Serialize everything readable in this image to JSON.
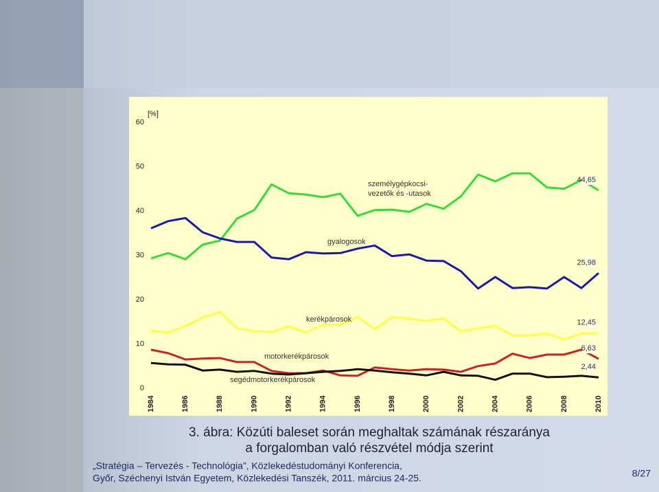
{
  "chart_data": {
    "type": "line",
    "ylabel": "[%]",
    "x": [
      1984,
      1985,
      1986,
      1987,
      1988,
      1989,
      1990,
      1991,
      1992,
      1993,
      1994,
      1995,
      1996,
      1997,
      1998,
      1999,
      2000,
      2001,
      2002,
      2003,
      2004,
      2005,
      2006,
      2007,
      2008,
      2009,
      2010
    ],
    "xlim": [
      1984,
      2010
    ],
    "xticks": [
      1984,
      1986,
      1988,
      1990,
      1992,
      1994,
      1996,
      1998,
      2000,
      2002,
      2004,
      2006,
      2008,
      2010
    ],
    "ylim": [
      0,
      60
    ],
    "yticks": [
      0,
      10,
      20,
      30,
      40,
      50,
      60
    ],
    "series": [
      {
        "name": "személygépkocsi-\nvezetők és -utasok",
        "color": "#33dd33",
        "values": [
          29.3,
          30.5,
          29.1,
          32.4,
          33.3,
          38.3,
          40.2,
          46.0,
          44.0,
          43.7,
          43.1,
          43.9,
          38.9,
          40.2,
          40.3,
          39.8,
          41.6,
          40.5,
          43.3,
          48.2,
          46.7,
          48.5,
          48.5,
          45.3,
          45.0,
          47.0,
          44.65
        ],
        "value_labels": [
          null,
          null,
          null,
          null,
          null,
          null,
          null,
          null,
          null,
          null,
          null,
          null,
          null,
          null,
          null,
          null,
          null,
          null,
          null,
          null,
          null,
          null,
          null,
          null,
          null,
          null,
          "44,65"
        ]
      },
      {
        "name": "gyalogosok",
        "color": "#1a1aaa",
        "values": [
          36.1,
          37.7,
          38.4,
          35.2,
          33.8,
          33.0,
          33.0,
          29.5,
          29.1,
          30.7,
          30.4,
          30.5,
          31.5,
          32.2,
          29.8,
          30.2,
          28.8,
          28.7,
          26.4,
          22.5,
          25.1,
          22.6,
          22.8,
          22.5,
          25.1,
          22.6,
          25.98
        ],
        "value_labels": [
          null,
          null,
          null,
          null,
          null,
          null,
          null,
          null,
          null,
          null,
          null,
          null,
          null,
          null,
          null,
          null,
          null,
          null,
          null,
          null,
          null,
          null,
          null,
          null,
          null,
          null,
          "25,98"
        ]
      },
      {
        "name": "kerékpárosok",
        "color": "#ffff44",
        "values": [
          13.0,
          12.6,
          14.1,
          16.0,
          17.2,
          13.5,
          12.9,
          12.7,
          14.0,
          12.6,
          14.3,
          14.3,
          16.1,
          13.3,
          16.0,
          15.7,
          15.2,
          15.8,
          12.9,
          13.5,
          14.1,
          11.9,
          11.9,
          12.4,
          11.0,
          12.4,
          12.45
        ],
        "value_labels": [
          null,
          null,
          null,
          null,
          null,
          null,
          null,
          null,
          null,
          null,
          null,
          null,
          null,
          null,
          null,
          null,
          null,
          null,
          null,
          null,
          null,
          null,
          null,
          null,
          null,
          null,
          "12,45"
        ]
      },
      {
        "name": "motorkerékpárosok",
        "color": "#cc2222",
        "values": [
          8.7,
          7.9,
          6.5,
          6.7,
          6.8,
          5.9,
          5.9,
          3.9,
          3.4,
          3.4,
          4.0,
          2.9,
          2.8,
          4.7,
          4.3,
          4.0,
          4.3,
          4.2,
          3.7,
          5.0,
          5.6,
          7.8,
          6.8,
          7.6,
          7.6,
          8.7,
          6.63
        ],
        "value_labels": [
          null,
          null,
          null,
          null,
          null,
          null,
          null,
          null,
          null,
          null,
          null,
          null,
          null,
          null,
          null,
          null,
          null,
          null,
          null,
          null,
          null,
          null,
          null,
          null,
          null,
          null,
          "6,63"
        ]
      },
      {
        "name": "segédmotorkerékpárosok",
        "color": "#111111",
        "values": [
          5.7,
          5.4,
          5.3,
          4.0,
          4.2,
          3.7,
          3.9,
          3.3,
          3.1,
          3.4,
          3.7,
          3.9,
          4.3,
          4.0,
          3.6,
          3.3,
          2.9,
          3.7,
          2.9,
          2.8,
          1.9,
          3.3,
          3.3,
          2.5,
          2.6,
          2.8,
          2.44
        ],
        "value_labels": [
          null,
          null,
          null,
          null,
          null,
          null,
          null,
          null,
          null,
          null,
          null,
          null,
          null,
          null,
          null,
          null,
          null,
          null,
          null,
          null,
          null,
          null,
          null,
          null,
          null,
          null,
          "2,44"
        ]
      }
    ]
  },
  "caption": [
    "3. ábra: Közúti baleset során meghaltak számának részaránya",
    "a forgalomban való részvétel módja szerint"
  ],
  "footer": [
    "„Stratégia – Tervezés - Technológia”, Közlekedéstudományi Konferencia,",
    "Győr, Széchenyi István Egyetem, Közlekedési Tanszék, 2011. március 24-25."
  ],
  "page_number": "8/27"
}
